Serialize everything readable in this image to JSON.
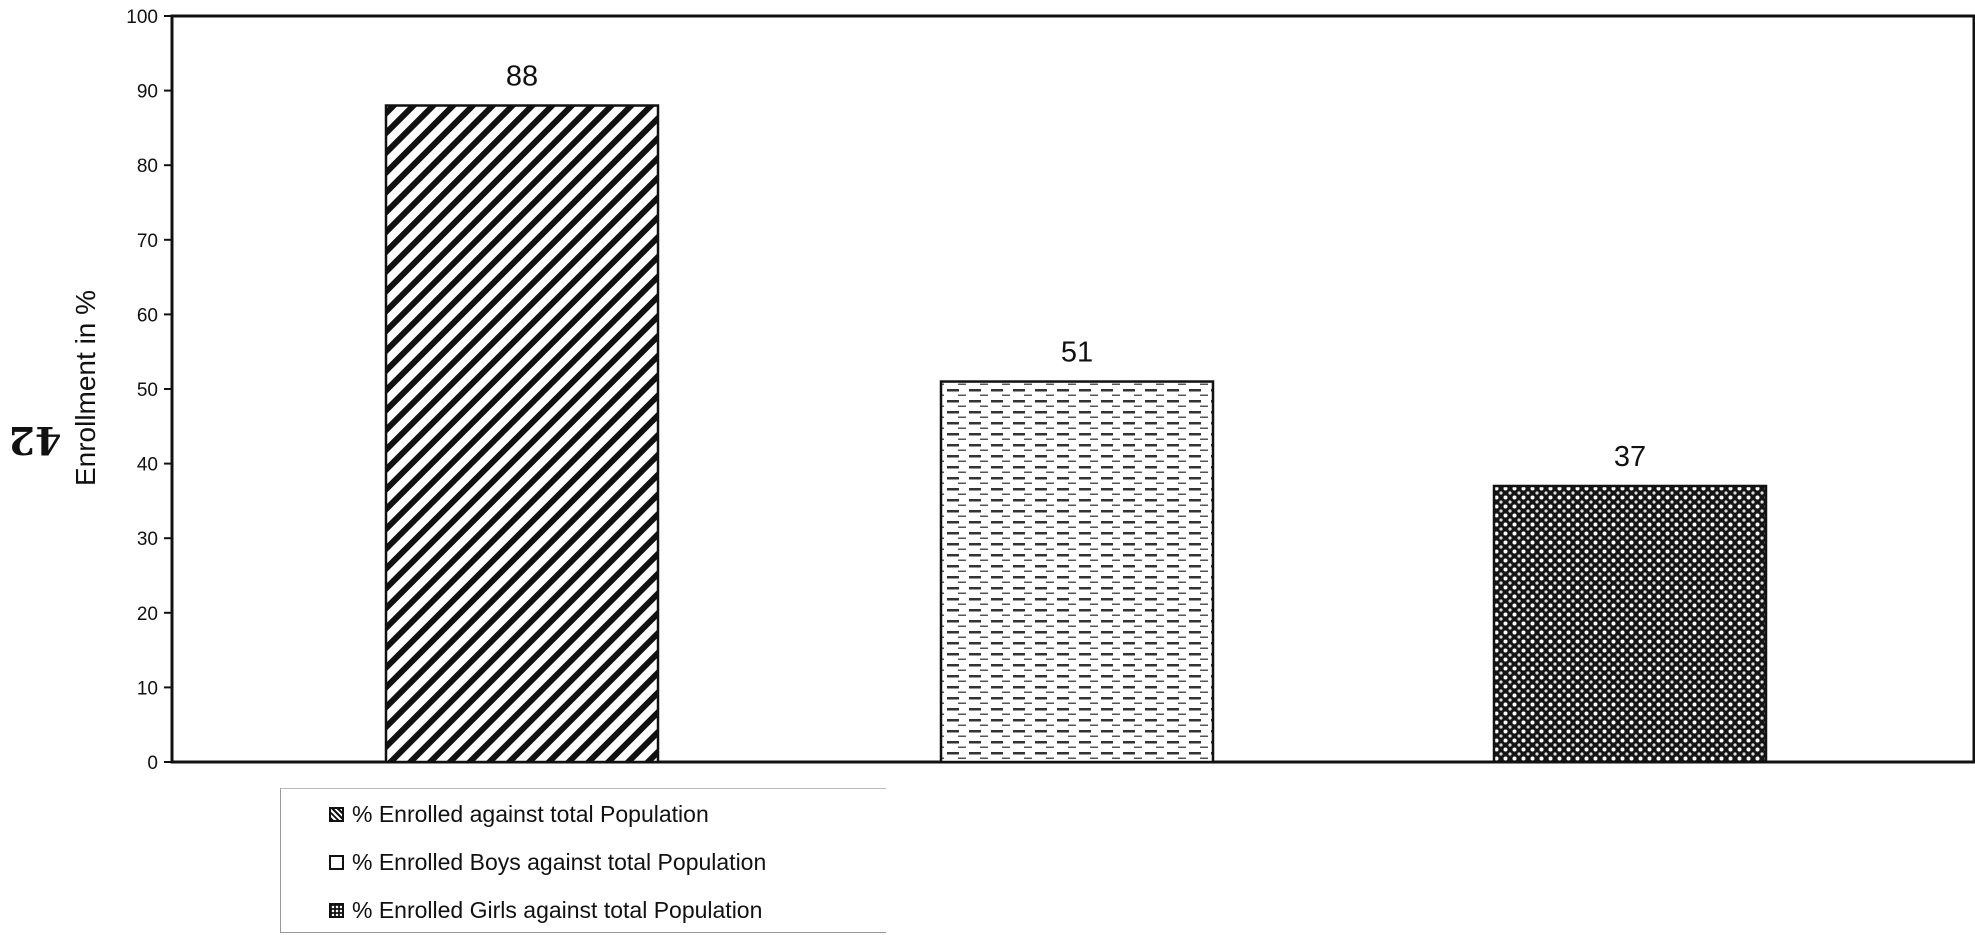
{
  "page_number": "42",
  "chart_data": {
    "type": "bar",
    "title": "",
    "xlabel": "",
    "ylabel": "Enrollment in %",
    "ylim": [
      0,
      100
    ],
    "yticks": [
      0,
      10,
      20,
      30,
      40,
      50,
      60,
      70,
      80,
      90,
      100
    ],
    "grid": false,
    "legend_position": "bottom-left",
    "series": [
      {
        "name": "% Enrolled against total Population",
        "value": 88,
        "label": "88",
        "pattern": "diagonal-hatch"
      },
      {
        "name": "% Enrolled Boys against total Population",
        "value": 51,
        "label": "51",
        "pattern": "dashed-lines"
      },
      {
        "name": "% Enrolled Girls against total Population",
        "value": 37,
        "label": "37",
        "pattern": "dotted-dark"
      }
    ]
  }
}
